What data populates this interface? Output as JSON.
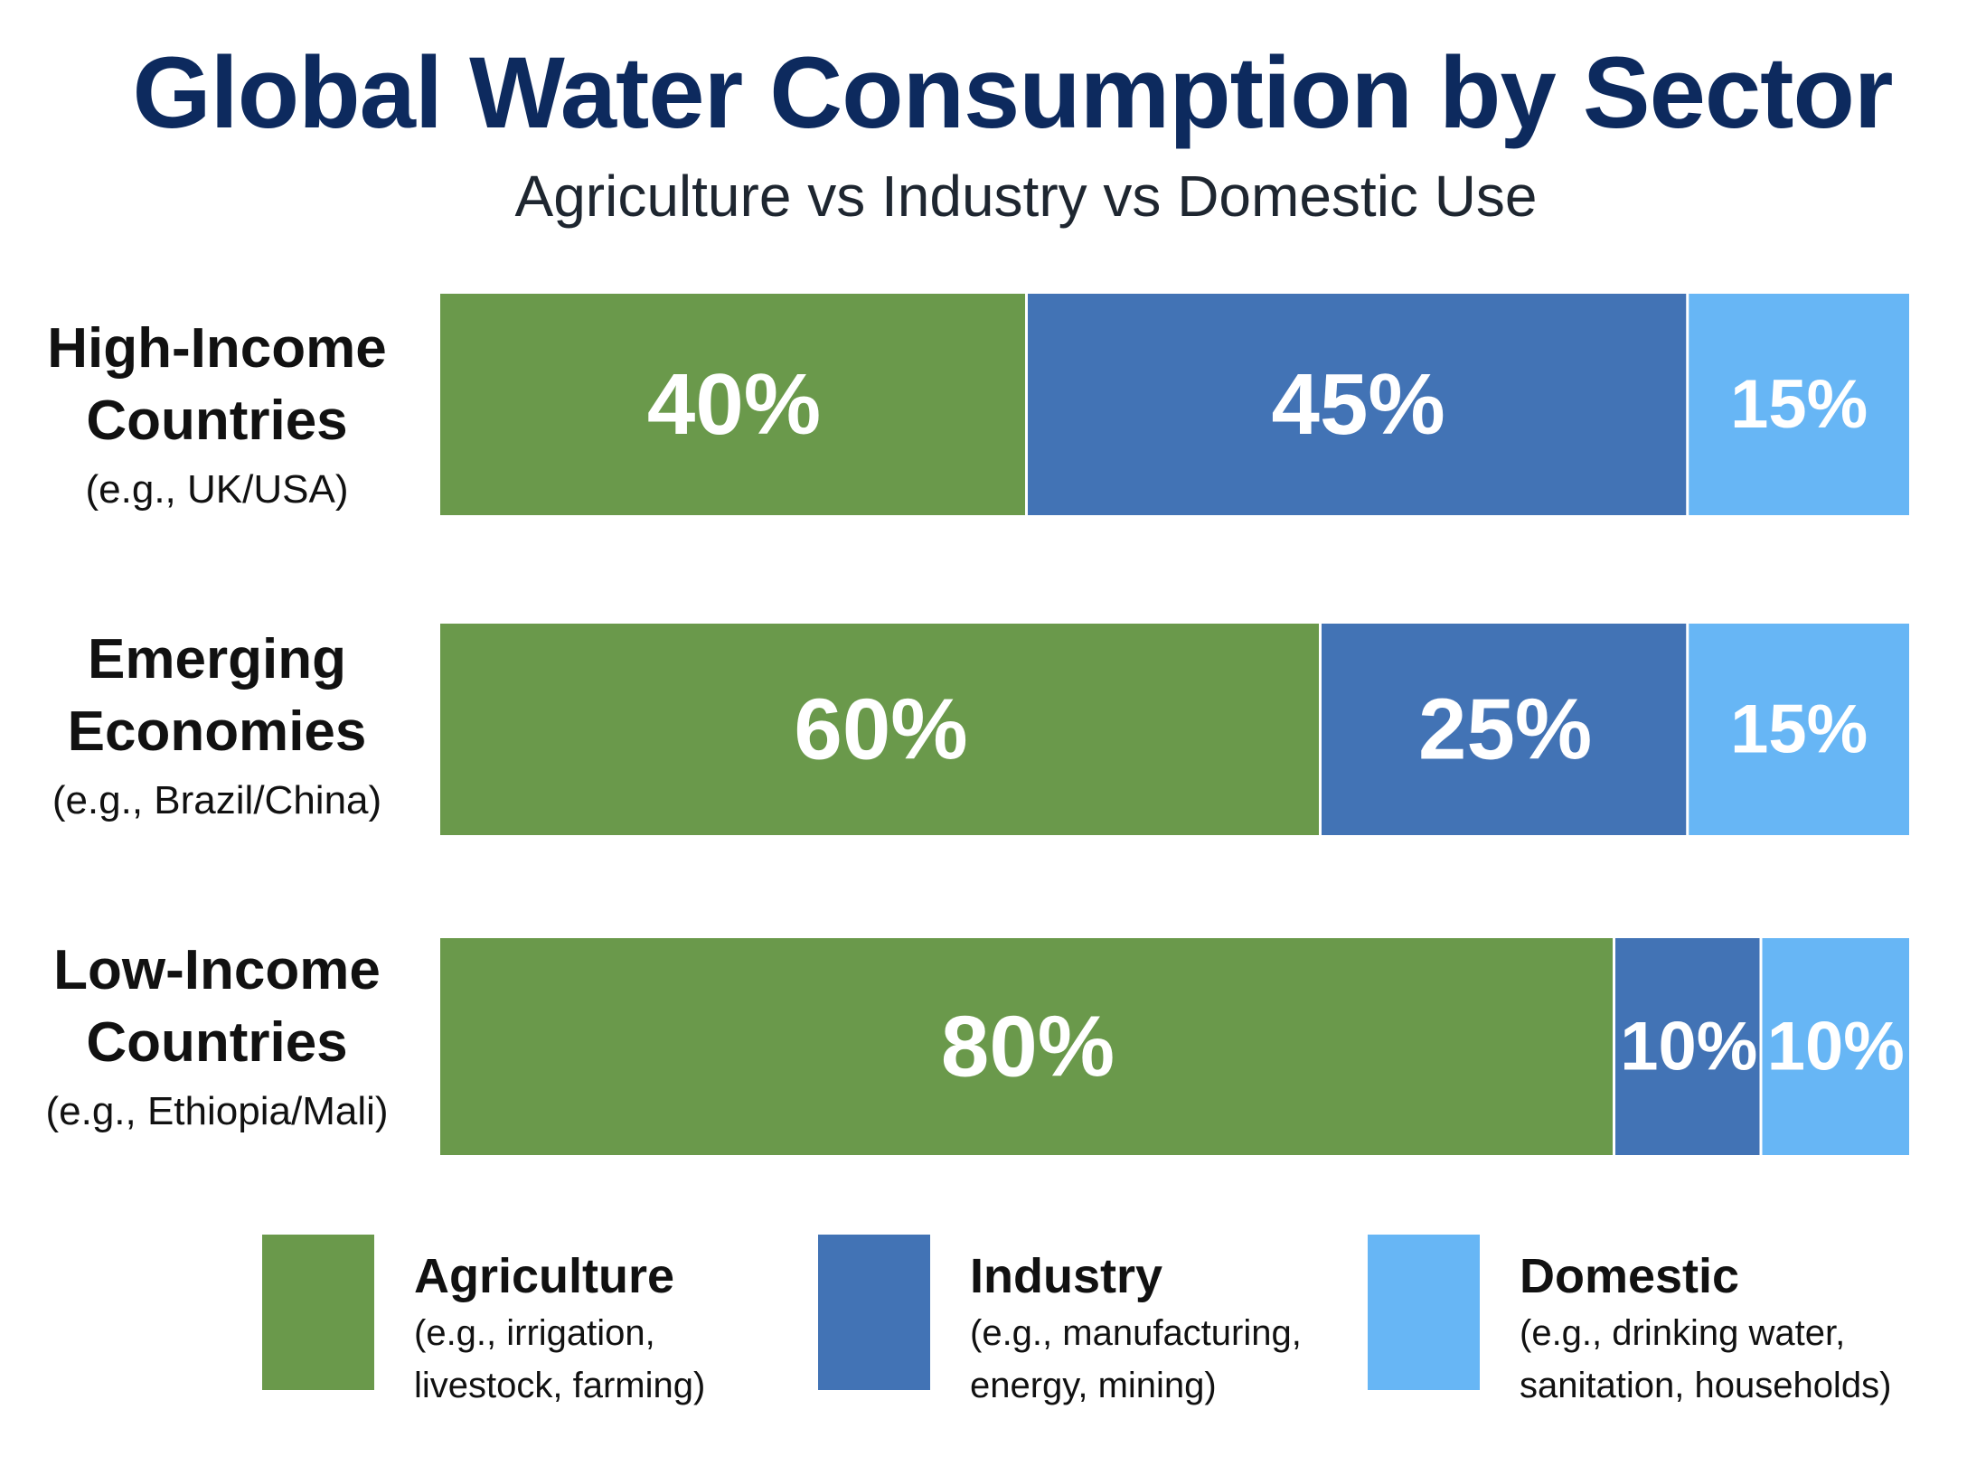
{
  "title": "Global Water Consumption by Sector",
  "subtitle": "Agriculture vs Industry vs Domestic Use",
  "colors": {
    "Agriculture": "#6a994b",
    "Industry": "#4273b5",
    "Domestic": "#67b6f5"
  },
  "rows": [
    {
      "label": "High-Income Countries",
      "label_line1": "High-Income",
      "label_line2": "Countries",
      "example": "(e.g., UK/USA)"
    },
    {
      "label": "Emerging Economies",
      "label_line1": "Emerging",
      "label_line2": "Economies",
      "example": "(e.g., Brazil/China)"
    },
    {
      "label": "Low-Income Countries",
      "label_line1": "Low-Income",
      "label_line2": "Countries",
      "example": "(e.g., Ethiopia/Mali)"
    }
  ],
  "legend": [
    {
      "name": "Agriculture",
      "desc_line1": "(e.g., irrigation,",
      "desc_line2": "livestock, farming)"
    },
    {
      "name": "Industry",
      "desc_line1": "(e.g., manufacturing,",
      "desc_line2": "energy, mining)"
    },
    {
      "name": "Domestic",
      "desc_line1": "(e.g., drinking water,",
      "desc_line2": "sanitation, households)"
    }
  ],
  "chart_data": {
    "type": "bar",
    "orientation": "horizontal",
    "stacked": true,
    "unit": "%",
    "title": "Global Water Consumption by Sector",
    "subtitle": "Agriculture vs Industry vs Domestic Use",
    "categories": [
      "High-Income Countries",
      "Emerging Economies",
      "Low-Income Countries"
    ],
    "series": [
      {
        "name": "Agriculture",
        "values": [
          40,
          60,
          80
        ],
        "labels": [
          "40%",
          "60%",
          "80%"
        ]
      },
      {
        "name": "Industry",
        "values": [
          45,
          25,
          10
        ],
        "labels": [
          "45%",
          "25%",
          "10%"
        ]
      },
      {
        "name": "Domestic",
        "values": [
          15,
          15,
          10
        ],
        "labels": [
          "15%",
          "15%",
          "10%"
        ]
      }
    ],
    "xlim": [
      0,
      100
    ],
    "grid": false,
    "legend_position": "bottom"
  }
}
